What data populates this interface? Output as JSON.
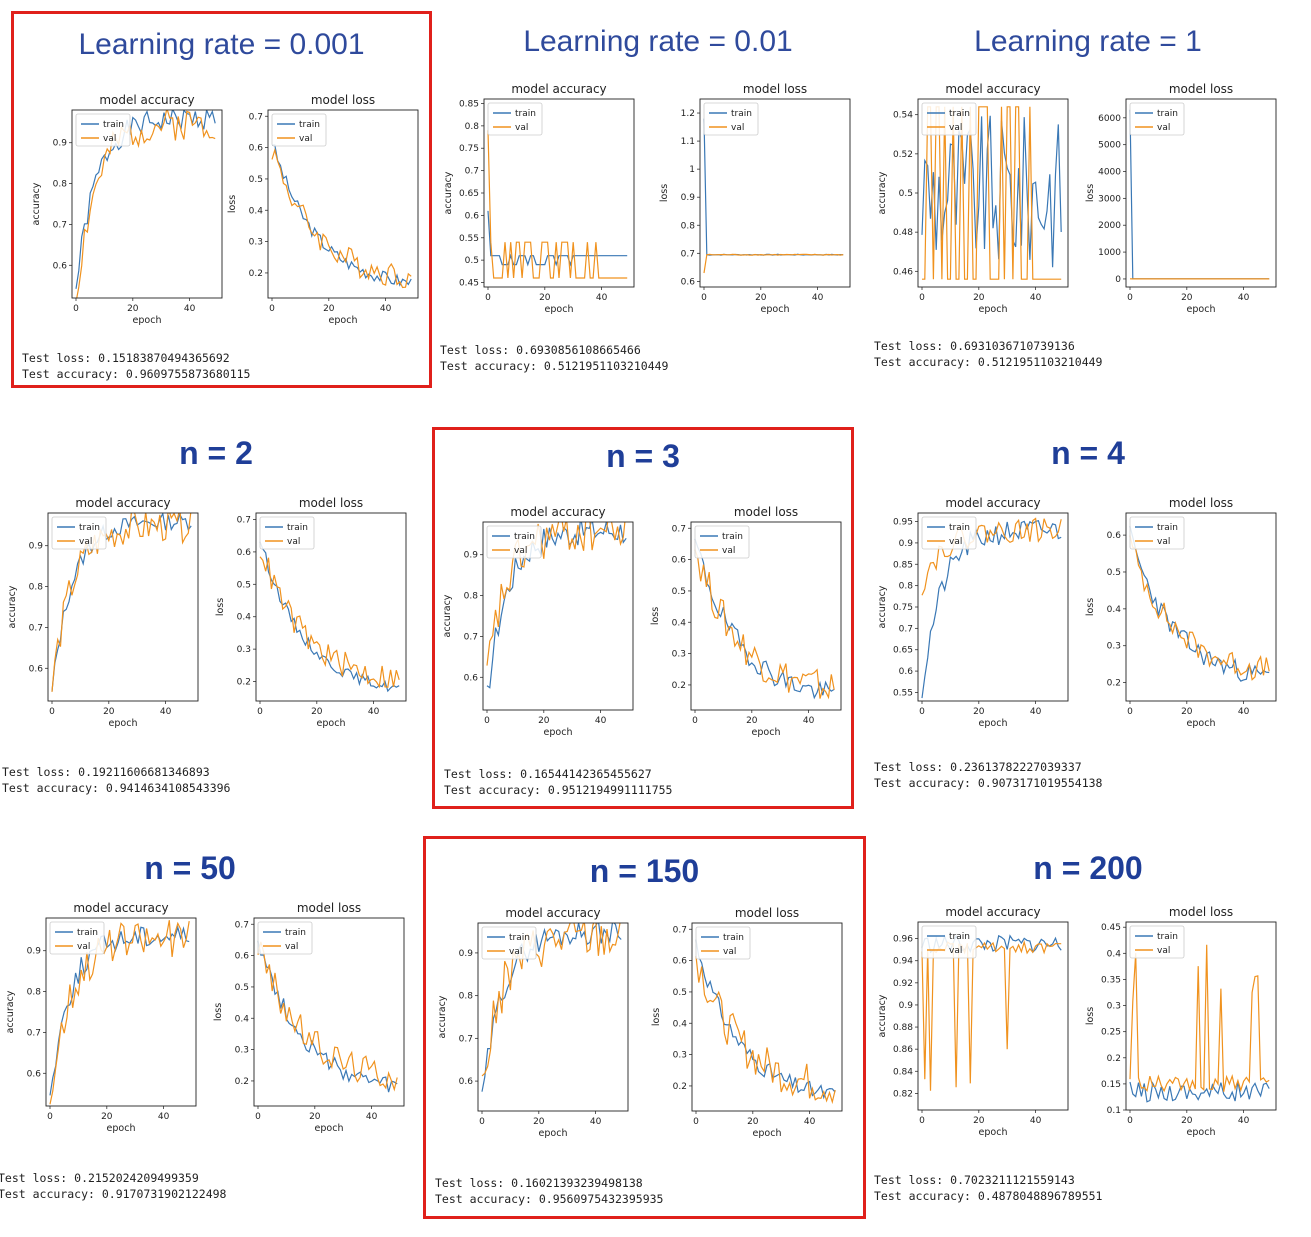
{
  "panels": [
    {
      "title": "Learning rate = 0.001",
      "highlight": true,
      "test_loss": "Test loss: 0.15183870494365692",
      "test_accuracy": "Test accuracy: 0.9609755873680115"
    },
    {
      "title": "Learning rate = 0.01",
      "highlight": false,
      "test_loss": "Test loss: 0.6930856108665466",
      "test_accuracy": "Test accuracy: 0.5121951103210449"
    },
    {
      "title": "Learning rate = 1",
      "highlight": false,
      "test_loss": "Test loss: 0.6931036710739136",
      "test_accuracy": "Test accuracy: 0.5121951103210449"
    },
    {
      "title": "n = 2",
      "highlight": false,
      "test_loss": "Test loss: 0.19211606681346893",
      "test_accuracy": "Test accuracy: 0.9414634108543396"
    },
    {
      "title": "n = 3",
      "highlight": true,
      "test_loss": "Test loss: 0.16544142365455627",
      "test_accuracy": "Test accuracy: 0.9512194991111755"
    },
    {
      "title": "n = 4",
      "highlight": false,
      "test_loss": "Test loss: 0.23613782227039337",
      "test_accuracy": "Test accuracy: 0.9073171019554138"
    },
    {
      "title": "n = 50",
      "highlight": false,
      "test_loss": "Test loss: 0.2152024209499359",
      "test_accuracy": "Test accuracy: 0.9170731902122498"
    },
    {
      "title": "n = 150",
      "highlight": true,
      "test_loss": "Test loss: 0.16021393239498138",
      "test_accuracy": "Test accuracy: 0.9560975432395935"
    },
    {
      "title": "n = 200",
      "highlight": false,
      "test_loss": "Test loss: 0.7023211121559143",
      "test_accuracy": "Test accuracy: 0.4878048896789551"
    }
  ],
  "colors": {
    "train": "#3a78b5",
    "val": "#f0921e",
    "highlight": "#e0201b",
    "title": "#2f4a9c"
  },
  "chart_data": [
    {
      "type": "line",
      "title": "model accuracy",
      "xlabel": "epoch",
      "ylabel": "accuracy",
      "xlim": [
        0,
        50
      ],
      "ylim": [
        0.52,
        0.98
      ],
      "xticks": [
        0,
        20,
        40
      ],
      "yticks": [
        0.6,
        0.7,
        0.8,
        0.9
      ],
      "legend": "upper left",
      "series": [
        {
          "name": "train",
          "kind": "rise",
          "start": 0.54,
          "end": 0.96,
          "noise": 0.02,
          "seed": 1
        },
        {
          "name": "val",
          "kind": "rise",
          "start": 0.52,
          "end": 0.95,
          "noise": 0.03,
          "seed": 2
        }
      ]
    },
    {
      "type": "line",
      "title": "model loss",
      "xlabel": "epoch",
      "ylabel": "loss",
      "xlim": [
        0,
        50
      ],
      "ylim": [
        0.12,
        0.72
      ],
      "xticks": [
        0,
        20,
        40
      ],
      "yticks": [
        0.2,
        0.3,
        0.4,
        0.5,
        0.6,
        0.7
      ],
      "legend": "upper left",
      "series": [
        {
          "name": "train",
          "kind": "decay",
          "start": 0.62,
          "end": 0.15,
          "noise": 0.015,
          "seed": 3
        },
        {
          "name": "val",
          "kind": "decay",
          "start": 0.6,
          "end": 0.17,
          "noise": 0.03,
          "seed": 4
        }
      ]
    },
    {
      "type": "line",
      "title": "model accuracy",
      "xlabel": "epoch",
      "ylabel": "accuracy",
      "xlim": [
        0,
        50
      ],
      "ylim": [
        0.44,
        0.86
      ],
      "xticks": [
        0,
        20,
        40
      ],
      "yticks": [
        0.45,
        0.5,
        0.55,
        0.6,
        0.65,
        0.7,
        0.75,
        0.8,
        0.85
      ],
      "legend": "upper left",
      "series": [
        {
          "name": "train",
          "kind": "bin",
          "lo": 0.49,
          "hi": 0.51,
          "first": 0.61,
          "tail": 0.51,
          "seed": 5
        },
        {
          "name": "val",
          "kind": "bin",
          "lo": 0.46,
          "hi": 0.54,
          "first": 0.79,
          "tail": 0.46,
          "seed": 6
        }
      ]
    },
    {
      "type": "line",
      "title": "model loss",
      "xlabel": "epoch",
      "ylabel": "loss",
      "xlim": [
        0,
        50
      ],
      "ylim": [
        0.58,
        1.25
      ],
      "xticks": [
        0,
        20,
        40
      ],
      "yticks": [
        0.6,
        0.7,
        0.8,
        0.9,
        1.0,
        1.1,
        1.2
      ],
      "legend": "upper left",
      "series": [
        {
          "name": "train",
          "kind": "spike",
          "first": 1.18,
          "level": 0.695,
          "noise": 0.003,
          "seed": 7
        },
        {
          "name": "val",
          "kind": "spike",
          "first": 0.63,
          "level": 0.695,
          "noise": 0.003,
          "seed": 8
        }
      ]
    },
    {
      "type": "line",
      "title": "model accuracy",
      "xlabel": "epoch",
      "ylabel": "accuracy",
      "xlim": [
        0,
        50
      ],
      "ylim": [
        0.452,
        0.548
      ],
      "xticks": [
        0,
        20,
        40
      ],
      "yticks": [
        0.46,
        0.48,
        0.5,
        0.52,
        0.54
      ],
      "legend": "upper left",
      "series": [
        {
          "name": "train",
          "kind": "noise",
          "mid": 0.5,
          "amp": 0.04,
          "seed": 9
        },
        {
          "name": "val",
          "kind": "bin",
          "lo": 0.456,
          "hi": 0.544,
          "first": 0.456,
          "tail": 0.456,
          "seed": 10
        }
      ]
    },
    {
      "type": "line",
      "title": "model loss",
      "xlabel": "epoch",
      "ylabel": "loss",
      "xlim": [
        0,
        50
      ],
      "ylim": [
        -300,
        6700
      ],
      "xticks": [
        0,
        20,
        40
      ],
      "yticks": [
        0,
        1000,
        2000,
        3000,
        4000,
        5000,
        6000
      ],
      "legend": "upper left",
      "series": [
        {
          "name": "train",
          "kind": "spike",
          "first": 6300,
          "level": 0,
          "noise": 0,
          "seed": 11
        },
        {
          "name": "val",
          "kind": "spike",
          "first": 5,
          "level": 0,
          "noise": 0,
          "seed": 12
        }
      ]
    },
    {
      "type": "line",
      "title": "model accuracy",
      "xlabel": "epoch",
      "ylabel": "accuracy",
      "xlim": [
        0,
        50
      ],
      "ylim": [
        0.52,
        0.98
      ],
      "xticks": [
        0,
        20,
        40
      ],
      "yticks": [
        0.6,
        0.7,
        0.8,
        0.9
      ],
      "legend": "upper left",
      "series": [
        {
          "name": "train",
          "kind": "rise",
          "start": 0.54,
          "end": 0.96,
          "noise": 0.015,
          "seed": 13
        },
        {
          "name": "val",
          "kind": "rise",
          "start": 0.55,
          "end": 0.95,
          "noise": 0.03,
          "seed": 14
        }
      ]
    },
    {
      "type": "line",
      "title": "model loss",
      "xlabel": "epoch",
      "ylabel": "loss",
      "xlim": [
        0,
        50
      ],
      "ylim": [
        0.14,
        0.72
      ],
      "xticks": [
        0,
        20,
        40
      ],
      "yticks": [
        0.2,
        0.3,
        0.4,
        0.5,
        0.6,
        0.7
      ],
      "legend": "upper left",
      "series": [
        {
          "name": "train",
          "kind": "decay",
          "start": 0.64,
          "end": 0.16,
          "noise": 0.012,
          "seed": 15
        },
        {
          "name": "val",
          "kind": "decay",
          "start": 0.62,
          "end": 0.19,
          "noise": 0.03,
          "seed": 16
        }
      ]
    },
    {
      "type": "line",
      "title": "model accuracy",
      "xlabel": "epoch",
      "ylabel": "accuracy",
      "xlim": [
        0,
        50
      ],
      "ylim": [
        0.52,
        0.98
      ],
      "xticks": [
        0,
        20,
        40
      ],
      "yticks": [
        0.6,
        0.7,
        0.8,
        0.9
      ],
      "legend": "upper left",
      "series": [
        {
          "name": "train",
          "kind": "rise",
          "start": 0.55,
          "end": 0.96,
          "noise": 0.025,
          "seed": 17
        },
        {
          "name": "val",
          "kind": "rise",
          "start": 0.6,
          "end": 0.96,
          "noise": 0.04,
          "seed": 18
        }
      ]
    },
    {
      "type": "line",
      "title": "model loss",
      "xlabel": "epoch",
      "ylabel": "loss",
      "xlim": [
        0,
        50
      ],
      "ylim": [
        0.12,
        0.72
      ],
      "xticks": [
        0,
        20,
        40
      ],
      "yticks": [
        0.2,
        0.3,
        0.4,
        0.5,
        0.6,
        0.7
      ],
      "legend": "upper left",
      "series": [
        {
          "name": "train",
          "kind": "decay",
          "start": 0.66,
          "end": 0.15,
          "noise": 0.025,
          "seed": 19
        },
        {
          "name": "val",
          "kind": "decay",
          "start": 0.64,
          "end": 0.17,
          "noise": 0.04,
          "seed": 20
        }
      ]
    },
    {
      "type": "line",
      "title": "model accuracy",
      "xlabel": "epoch",
      "ylabel": "accuracy",
      "xlim": [
        0,
        50
      ],
      "ylim": [
        0.53,
        0.97
      ],
      "xticks": [
        0,
        20,
        40
      ],
      "yticks": [
        0.55,
        0.6,
        0.65,
        0.7,
        0.75,
        0.8,
        0.85,
        0.9,
        0.95
      ],
      "legend": "upper left",
      "series": [
        {
          "name": "train",
          "kind": "rise",
          "start": 0.55,
          "end": 0.93,
          "noise": 0.02,
          "seed": 21
        },
        {
          "name": "val",
          "kind": "rise",
          "start": 0.8,
          "end": 0.93,
          "noise": 0.02,
          "seed": 22
        }
      ]
    },
    {
      "type": "line",
      "title": "model loss",
      "xlabel": "epoch",
      "ylabel": "loss",
      "xlim": [
        0,
        50
      ],
      "ylim": [
        0.15,
        0.66
      ],
      "xticks": [
        0,
        20,
        40
      ],
      "yticks": [
        0.2,
        0.3,
        0.4,
        0.5,
        0.6
      ],
      "legend": "upper left",
      "series": [
        {
          "name": "train",
          "kind": "decay",
          "start": 0.6,
          "end": 0.2,
          "noise": 0.02,
          "seed": 23
        },
        {
          "name": "val",
          "kind": "decay",
          "start": 0.58,
          "end": 0.22,
          "noise": 0.025,
          "seed": 24
        }
      ]
    },
    {
      "type": "line",
      "title": "model accuracy",
      "xlabel": "epoch",
      "ylabel": "accuracy",
      "xlim": [
        0,
        50
      ],
      "ylim": [
        0.52,
        0.98
      ],
      "xticks": [
        0,
        20,
        40
      ],
      "yticks": [
        0.6,
        0.7,
        0.8,
        0.9
      ],
      "legend": "upper left",
      "series": [
        {
          "name": "train",
          "kind": "rise",
          "start": 0.54,
          "end": 0.94,
          "noise": 0.02,
          "seed": 25
        },
        {
          "name": "val",
          "kind": "rise",
          "start": 0.53,
          "end": 0.93,
          "noise": 0.035,
          "seed": 26
        }
      ]
    },
    {
      "type": "line",
      "title": "model loss",
      "xlabel": "epoch",
      "ylabel": "loss",
      "xlim": [
        0,
        50
      ],
      "ylim": [
        0.12,
        0.72
      ],
      "xticks": [
        0,
        20,
        40
      ],
      "yticks": [
        0.2,
        0.3,
        0.4,
        0.5,
        0.6,
        0.7
      ],
      "legend": "upper left",
      "series": [
        {
          "name": "train",
          "kind": "decay",
          "start": 0.66,
          "end": 0.16,
          "noise": 0.02,
          "seed": 27
        },
        {
          "name": "val",
          "kind": "decay",
          "start": 0.64,
          "end": 0.2,
          "noise": 0.035,
          "seed": 28
        }
      ]
    },
    {
      "type": "line",
      "title": "model accuracy",
      "xlabel": "epoch",
      "ylabel": "accuracy",
      "xlim": [
        0,
        50
      ],
      "ylim": [
        0.53,
        0.97
      ],
      "xticks": [
        0,
        20,
        40
      ],
      "yticks": [
        0.6,
        0.7,
        0.8,
        0.9
      ],
      "legend": "upper left",
      "series": [
        {
          "name": "train",
          "kind": "rise",
          "start": 0.55,
          "end": 0.95,
          "noise": 0.02,
          "seed": 29
        },
        {
          "name": "val",
          "kind": "rise",
          "start": 0.58,
          "end": 0.94,
          "noise": 0.04,
          "seed": 30
        }
      ]
    },
    {
      "type": "line",
      "title": "model loss",
      "xlabel": "epoch",
      "ylabel": "loss",
      "xlim": [
        0,
        50
      ],
      "ylim": [
        0.12,
        0.72
      ],
      "xticks": [
        0,
        20,
        40
      ],
      "yticks": [
        0.2,
        0.3,
        0.4,
        0.5,
        0.6,
        0.7
      ],
      "legend": "upper left",
      "series": [
        {
          "name": "train",
          "kind": "decay",
          "start": 0.66,
          "end": 0.15,
          "noise": 0.02,
          "seed": 31
        },
        {
          "name": "val",
          "kind": "decay",
          "start": 0.62,
          "end": 0.18,
          "noise": 0.045,
          "seed": 32
        }
      ]
    },
    {
      "type": "line",
      "title": "model accuracy",
      "xlabel": "epoch",
      "ylabel": "accuracy",
      "xlim": [
        0,
        50
      ],
      "ylim": [
        0.805,
        0.975
      ],
      "xticks": [
        0,
        20,
        40
      ],
      "yticks": [
        0.82,
        0.84,
        0.86,
        0.88,
        0.9,
        0.92,
        0.94,
        0.96
      ],
      "legend": "upper left",
      "series": [
        {
          "name": "train",
          "kind": "noise",
          "mid": 0.955,
          "amp": 0.008,
          "seed": 33
        },
        {
          "name": "val",
          "kind": "dips",
          "mid": 0.952,
          "amp": 0.01,
          "seed": 34
        }
      ]
    },
    {
      "type": "line",
      "title": "model loss",
      "xlabel": "epoch",
      "ylabel": "loss",
      "xlim": [
        0,
        50
      ],
      "ylim": [
        0.1,
        0.46
      ],
      "xticks": [
        0,
        20,
        40
      ],
      "yticks": [
        0.1,
        0.15,
        0.2,
        0.25,
        0.3,
        0.35,
        0.4,
        0.45
      ],
      "legend": "upper left",
      "series": [
        {
          "name": "train",
          "kind": "noise",
          "mid": 0.135,
          "amp": 0.02,
          "seed": 35
        },
        {
          "name": "val",
          "kind": "spikes",
          "mid": 0.15,
          "amp": 0.03,
          "seed": 36
        }
      ]
    }
  ]
}
